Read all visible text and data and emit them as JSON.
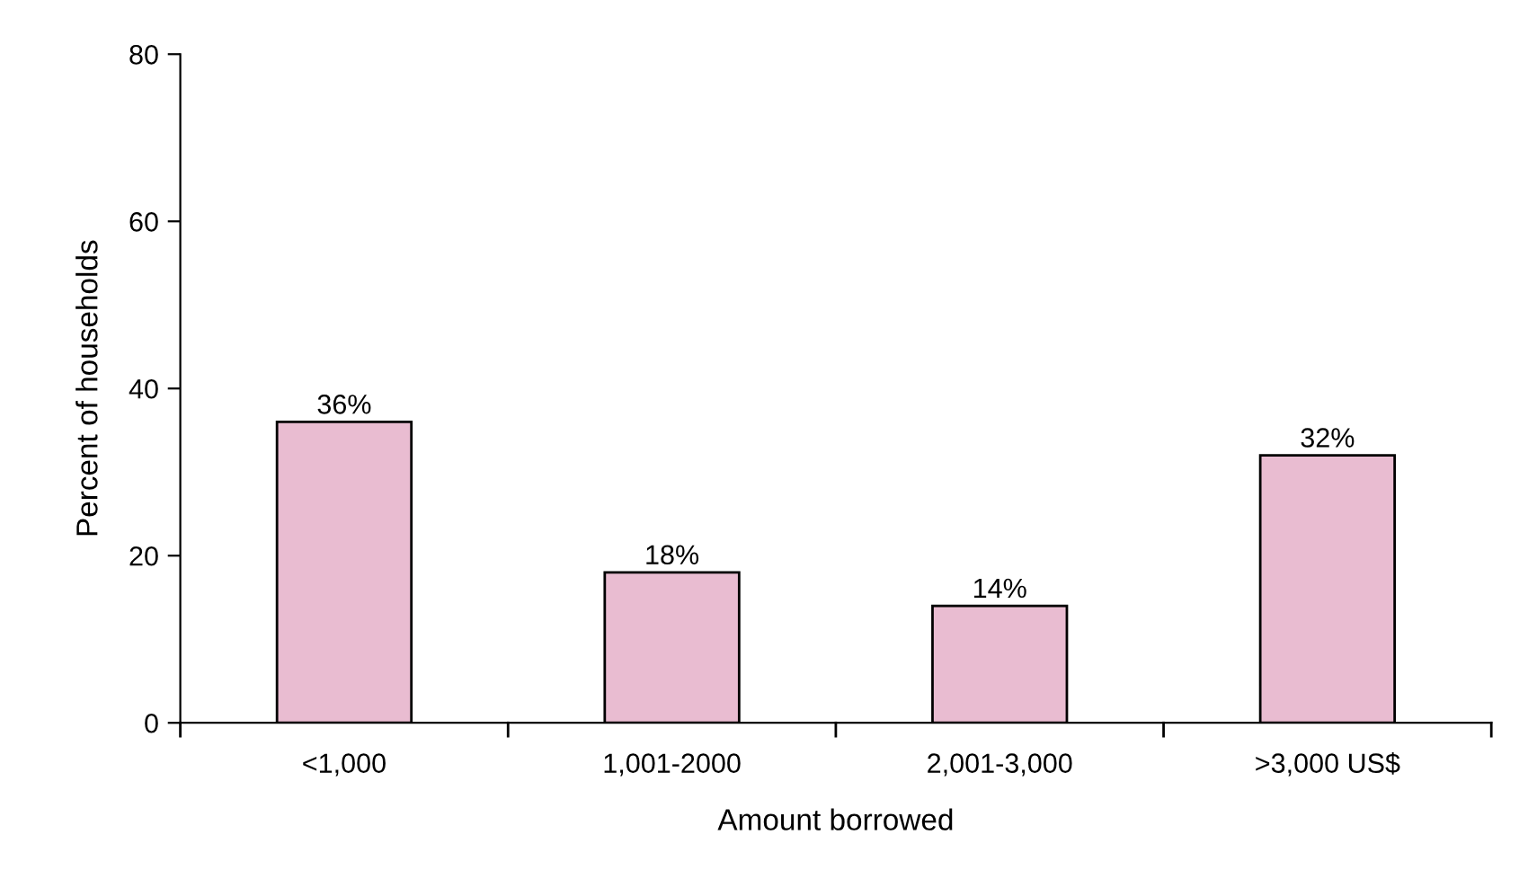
{
  "chart_data": {
    "type": "bar",
    "xlabel": "Amount borrowed",
    "ylabel": "Percent of households",
    "categories": [
      "<1,000",
      "1,001-2000",
      "2,001-3,000",
      ">3,000 US$"
    ],
    "values": [
      36,
      18,
      14,
      32
    ],
    "value_labels": [
      "36%",
      "18%",
      "14%",
      "32%"
    ],
    "color": "#e9bcd1",
    "ylim": [
      0,
      80
    ],
    "yticks": [
      0,
      20,
      40,
      60,
      80
    ],
    "grid": false,
    "legend": false
  }
}
